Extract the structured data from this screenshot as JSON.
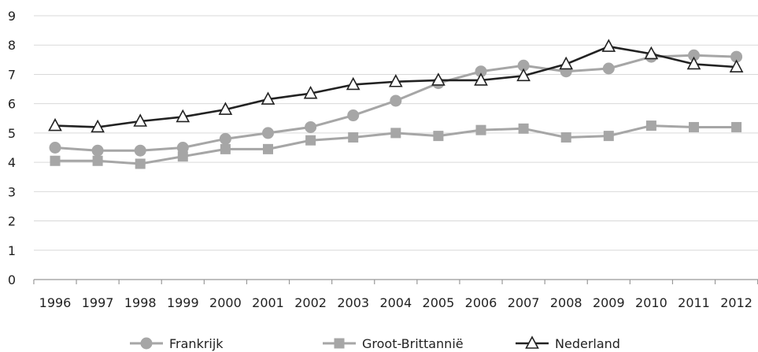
{
  "chart_data": {
    "type": "line",
    "title": "",
    "xlabel": "",
    "ylabel": "",
    "x": [
      "1996",
      "1997",
      "1998",
      "1999",
      "2000",
      "2001",
      "2002",
      "2003",
      "2004",
      "2005",
      "2006",
      "2007",
      "2008",
      "2009",
      "2010",
      "2011",
      "2012"
    ],
    "ylim": [
      0,
      9
    ],
    "yticks": [
      "0",
      "1",
      "2",
      "3",
      "4",
      "5",
      "6",
      "7",
      "8",
      "9"
    ],
    "grid": true,
    "legend_position": "bottom",
    "series": [
      {
        "name": "Frankrijk",
        "marker": "circle",
        "color": "#a6a6a6",
        "values": [
          4.5,
          4.4,
          4.4,
          4.5,
          4.8,
          5.0,
          5.2,
          5.6,
          6.1,
          6.7,
          7.1,
          7.3,
          7.1,
          7.2,
          7.6,
          7.65,
          7.6
        ]
      },
      {
        "name": "Groot-Brittannië",
        "marker": "square",
        "color": "#a6a6a6",
        "values": [
          4.05,
          4.05,
          3.95,
          4.2,
          4.45,
          4.45,
          4.75,
          4.85,
          5.0,
          4.9,
          5.1,
          5.15,
          4.85,
          4.9,
          5.25,
          5.2,
          5.2
        ]
      },
      {
        "name": "Nederland",
        "marker": "triangle",
        "color": "#222222",
        "values": [
          5.25,
          5.2,
          5.4,
          5.55,
          5.8,
          6.15,
          6.35,
          6.65,
          6.75,
          6.8,
          6.8,
          6.95,
          7.35,
          7.95,
          7.7,
          7.35,
          7.25
        ]
      }
    ]
  }
}
